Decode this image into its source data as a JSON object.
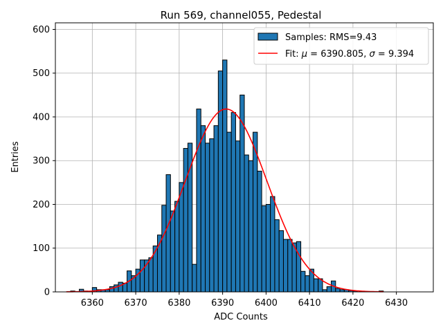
{
  "chart_data": {
    "type": "bar",
    "title": "Run 569, channel055, Pedestal",
    "xlabel": "ADC Counts",
    "ylabel": "Entries",
    "xlim": [
      6351.5,
      6438.5
    ],
    "ylim": [
      0,
      615
    ],
    "grid": true,
    "legend_position": "top-right",
    "x_ticks": [
      6360,
      6370,
      6380,
      6390,
      6400,
      6410,
      6420,
      6430
    ],
    "y_ticks": [
      0,
      100,
      200,
      300,
      400,
      500,
      600
    ],
    "histogram": {
      "name": "Samples: RMS=9.43",
      "color": "#1f77b4",
      "bin_width": 1,
      "x_start": 6355,
      "values": [
        2,
        0,
        6,
        2,
        0,
        10,
        5,
        5,
        5,
        12,
        16,
        22,
        20,
        48,
        37,
        52,
        73,
        73,
        78,
        105,
        130,
        198,
        268,
        185,
        207,
        250,
        328,
        340,
        63,
        418,
        380,
        340,
        350,
        380,
        505,
        530,
        365,
        410,
        345,
        450,
        313,
        300,
        365,
        276,
        197,
        200,
        218,
        165,
        140,
        120,
        120,
        112,
        115,
        47,
        37,
        52,
        30,
        30,
        5,
        12,
        25,
        8,
        5,
        5,
        3,
        2,
        0,
        0,
        0,
        0,
        0,
        2
      ]
    },
    "fit": {
      "name_prefix": "Fit: ",
      "mu_label": "μ",
      "mu_value": "6390.805",
      "sigma_label": "σ",
      "sigma_value": "9.394",
      "color": "#ff0000",
      "mu": 6390.805,
      "sigma": 9.394,
      "amplitude": 418,
      "x_range": [
        6354,
        6427
      ]
    }
  }
}
